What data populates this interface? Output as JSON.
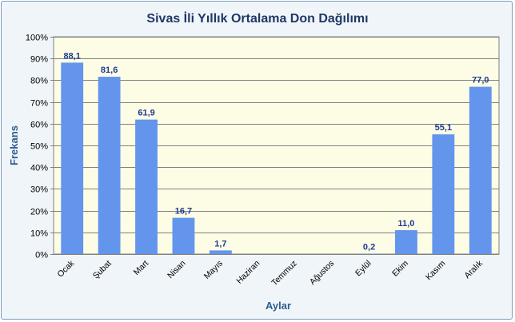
{
  "chart_data": {
    "type": "bar",
    "title": "Sivas İli Yıllık Ortalama Don Dağılımı",
    "xlabel": "Aylar",
    "ylabel": "Frekans",
    "categories": [
      "Ocak",
      "Şubat",
      "Mart",
      "Nisan",
      "Mayıs",
      "Haziran",
      "Temmuz",
      "Ağustos",
      "Eylül",
      "Ekim",
      "Kasım",
      "Aralık"
    ],
    "values": [
      88.1,
      81.6,
      61.9,
      16.7,
      1.7,
      null,
      null,
      null,
      0.2,
      11.0,
      55.1,
      77.0
    ],
    "data_labels": [
      "88,1",
      "81,6",
      "61,9",
      "16,7",
      "1,7",
      "",
      "",
      "",
      "0,2",
      "11,0",
      "55,1",
      "77,0"
    ],
    "ylim": [
      0,
      100
    ],
    "yticks": [
      0,
      10,
      20,
      30,
      40,
      50,
      60,
      70,
      80,
      90,
      100
    ],
    "ytick_labels": [
      "0%",
      "10%",
      "20%",
      "30%",
      "40%",
      "50%",
      "60%",
      "70%",
      "80%",
      "90%",
      "100%"
    ],
    "grid": true,
    "legend": "none",
    "colors": {
      "bar": "#6495ed",
      "plot_bg": "#fdfde6",
      "chart_bg": "#f0f5fa",
      "title": "#1f3864",
      "axis_title": "#2e5d8c",
      "data_label": "#1f3a93"
    }
  }
}
